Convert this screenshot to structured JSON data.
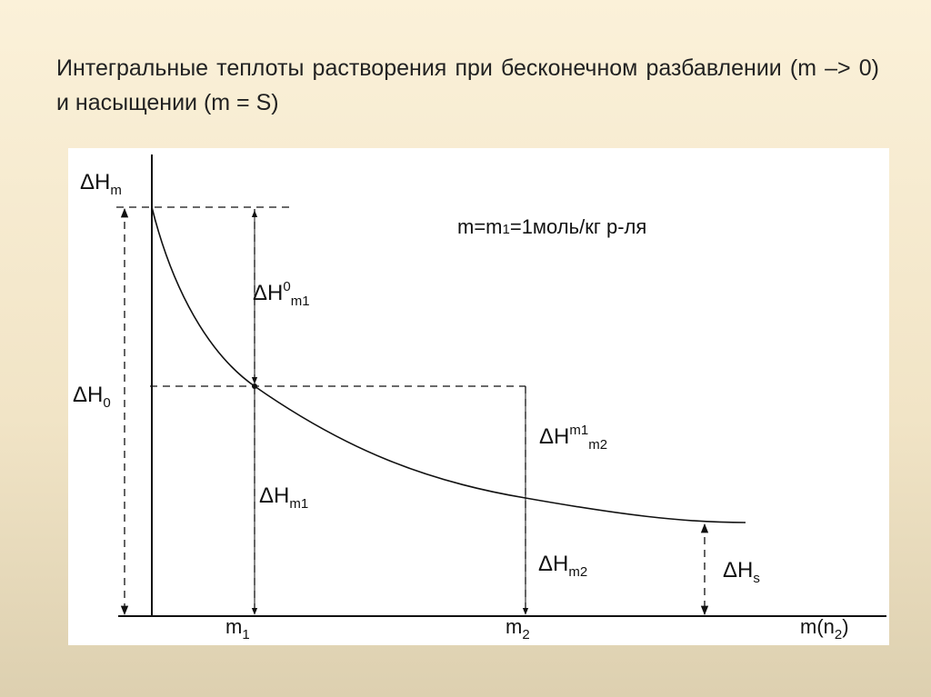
{
  "header": {
    "title": "Интегральные теплоты растворения при бесконечном разбавлении (m –> 0) и насыщении (m = S)"
  },
  "diagram": {
    "labels": [
      {
        "parts": [
          {
            "t": "ΔH"
          },
          {
            "t": "m",
            "s": "sub"
          }
        ]
      },
      {
        "parts": [
          {
            "t": "m=m"
          },
          {
            "t": "1",
            "s": "small"
          },
          {
            "t": "=1моль/кг р-ля"
          }
        ]
      },
      {
        "parts": [
          {
            "t": "ΔH"
          },
          {
            "t": "0",
            "s": "sup"
          },
          {
            "t": "m1",
            "s": "sub"
          }
        ]
      },
      {
        "parts": [
          {
            "t": "ΔH"
          },
          {
            "t": "0",
            "s": "sub"
          }
        ]
      },
      {
        "parts": [
          {
            "t": "ΔH"
          },
          {
            "t": "m1",
            "s": "sup"
          },
          {
            "t": "m2",
            "s": "sub"
          }
        ]
      },
      {
        "parts": [
          {
            "t": "ΔH"
          },
          {
            "t": "m1",
            "s": "sub"
          }
        ]
      },
      {
        "parts": [
          {
            "t": "ΔH"
          },
          {
            "t": "m2",
            "s": "sub"
          }
        ]
      },
      {
        "parts": [
          {
            "t": "ΔH"
          },
          {
            "t": "s",
            "s": "sub"
          }
        ]
      },
      {
        "parts": [
          {
            "t": "m"
          },
          {
            "t": "1",
            "s": "sub"
          }
        ]
      },
      {
        "parts": [
          {
            "t": "m"
          },
          {
            "t": "2",
            "s": "sub"
          }
        ]
      },
      {
        "parts": [
          {
            "t": "m(n"
          },
          {
            "t": "2",
            "s": "sub"
          },
          {
            "t": ")"
          }
        ]
      }
    ]
  }
}
